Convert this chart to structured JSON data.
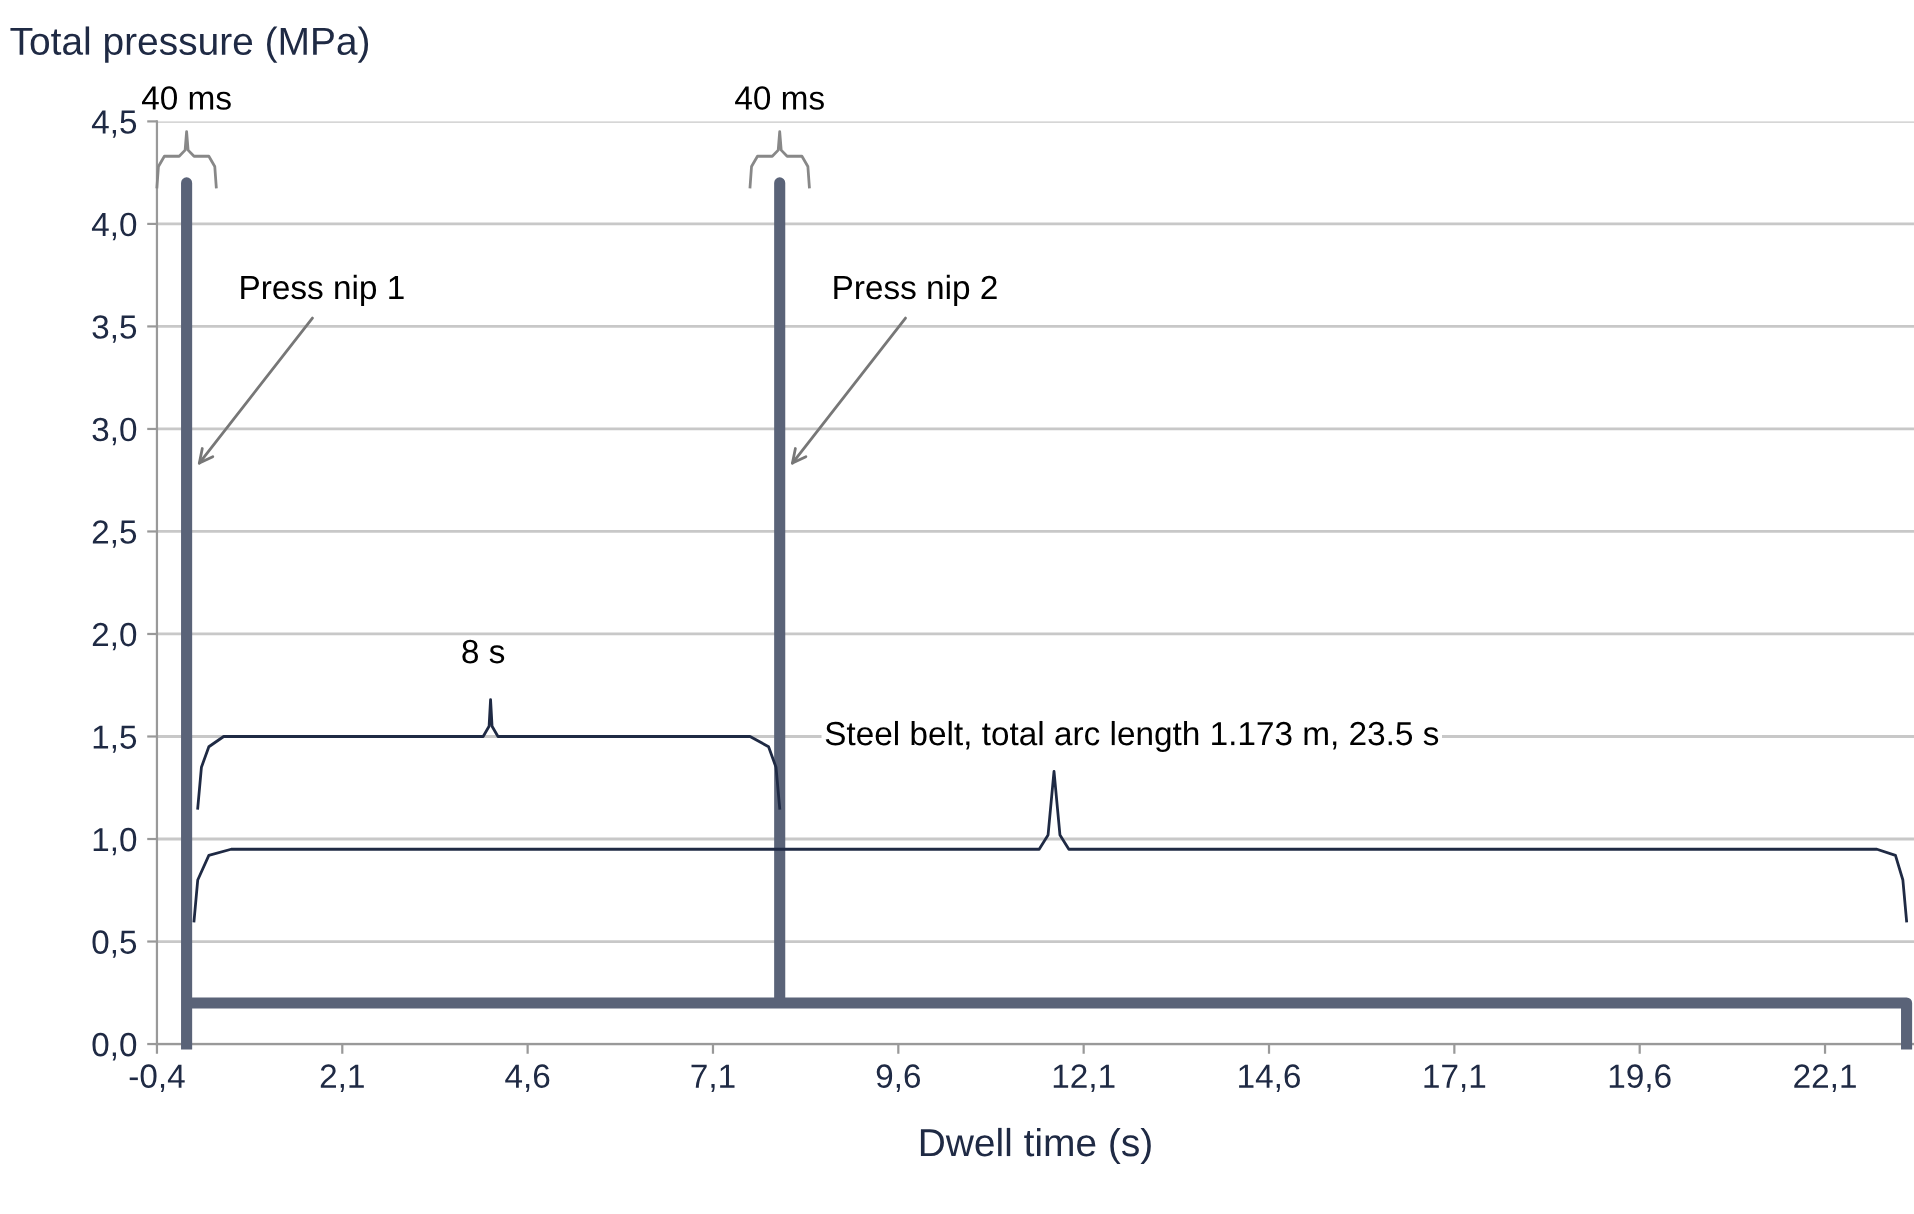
{
  "chart_data": {
    "type": "line",
    "ylabel": "Total pressure (MPa)",
    "xlabel": "Dwell time (s)",
    "series": [
      {
        "color": "#5a6378",
        "x": [
          0,
          0,
          0,
          8,
          8,
          8,
          23.2,
          23.2
        ],
        "values": [
          0,
          4.2,
          0.2,
          0.2,
          4.2,
          0.2,
          0.2,
          0
        ]
      },
      {
        "color": "#1f2a44",
        "x": [
          0.15,
          0.2,
          0.3,
          0.5,
          4.0,
          4.08,
          4.1,
          4.12,
          4.2,
          7.6,
          7.85,
          7.95,
          8.0
        ],
        "values": [
          1.15,
          1.35,
          1.45,
          1.5,
          1.5,
          1.55,
          1.68,
          1.55,
          1.5,
          1.5,
          1.45,
          1.35,
          1.15
        ]
      },
      {
        "color": "#1f2a44",
        "x": [
          0.1,
          0.15,
          0.3,
          0.6,
          11.5,
          11.62,
          11.7,
          11.78,
          11.9,
          22.8,
          23.05,
          23.15,
          23.2
        ],
        "values": [
          0.6,
          0.8,
          0.92,
          0.95,
          0.95,
          1.02,
          1.33,
          1.02,
          0.95,
          0.95,
          0.92,
          0.8,
          0.6
        ]
      },
      {
        "color": "#888888",
        "x": [
          -0.4,
          -0.38,
          -0.3,
          -0.1,
          -0.02,
          0,
          0.02,
          0.1,
          0.3,
          0.38,
          0.4
        ],
        "values": [
          4.18,
          4.28,
          4.33,
          4.33,
          4.36,
          4.45,
          4.36,
          4.33,
          4.33,
          4.28,
          4.18
        ]
      },
      {
        "color": "#888888",
        "x": [
          7.6,
          7.62,
          7.7,
          7.9,
          7.98,
          8,
          8.02,
          8.1,
          8.3,
          8.38,
          8.4
        ],
        "values": [
          4.18,
          4.28,
          4.33,
          4.33,
          4.36,
          4.45,
          4.36,
          4.33,
          4.33,
          4.28,
          4.18
        ]
      }
    ],
    "xlim": [
      -0.4,
      23.3
    ],
    "ylim": [
      0,
      4.5
    ],
    "xticks": [
      {
        "value": -0.4,
        "label": "-0,4"
      },
      {
        "value": 2.1,
        "label": "2,1"
      },
      {
        "value": 4.6,
        "label": "4,6"
      },
      {
        "value": 7.1,
        "label": "7,1"
      },
      {
        "value": 9.6,
        "label": "9,6"
      },
      {
        "value": 12.1,
        "label": "12,1"
      },
      {
        "value": 14.6,
        "label": "14,6"
      },
      {
        "value": 17.1,
        "label": "17,1"
      },
      {
        "value": 19.6,
        "label": "19,6"
      },
      {
        "value": 22.1,
        "label": "22,1"
      }
    ],
    "yticks": [
      {
        "value": 0,
        "label": "0,0"
      },
      {
        "value": 0.5,
        "label": "0,5"
      },
      {
        "value": 1,
        "label": "1,0"
      },
      {
        "value": 1.5,
        "label": "1,5"
      },
      {
        "value": 2,
        "label": "2,0"
      },
      {
        "value": 2.5,
        "label": "2,5"
      },
      {
        "value": 3,
        "label": "3,0"
      },
      {
        "value": 3.5,
        "label": "3,5"
      },
      {
        "value": 4,
        "label": "4,0"
      },
      {
        "value": 4.5,
        "label": "4,5"
      }
    ],
    "grid": "y",
    "marker": "none",
    "line_style": "solid",
    "annotations": [
      "40 ms",
      "40 ms",
      {
        "text": "Press nip 1",
        "x": 0.1,
        "y": 2.8
      },
      {
        "text": "Press nip 2",
        "x": 8.1,
        "y": 2.8
      },
      "8 s",
      "Steel belt, total arc length 1.173 m, 23.5 s"
    ]
  }
}
